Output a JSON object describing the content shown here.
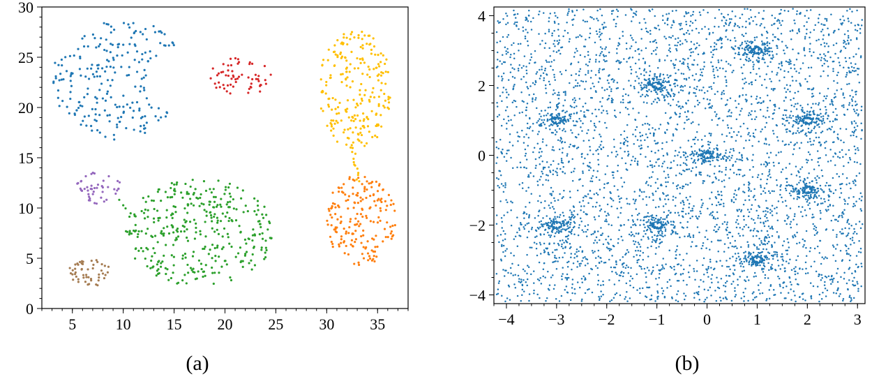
{
  "chart_data": [
    {
      "type": "scatter",
      "panel_label": "(a)",
      "xlim": [
        2,
        38
      ],
      "ylim": [
        0,
        30
      ],
      "xticks": [
        5,
        10,
        15,
        20,
        25,
        30,
        35
      ],
      "yticks": [
        0,
        5,
        10,
        15,
        20,
        25,
        30
      ],
      "grid": false,
      "series": [
        {
          "color": "#1f77b4",
          "region": "crescent",
          "center": [
            9.5,
            23
          ],
          "rx": 6.5,
          "ry": 6.2,
          "count": 230,
          "x_range": [
            3,
            16
          ]
        },
        {
          "color": "#d62728",
          "region": "ellipse",
          "center": [
            21.5,
            23.1
          ],
          "rx": 3.3,
          "ry": 1.9,
          "count": 60
        },
        {
          "color": "#ffbf00",
          "region": "ellipse",
          "center": [
            32.8,
            21.8
          ],
          "rx": 3.6,
          "ry": 6.0,
          "count": 230
        },
        {
          "color": "#ffbf00",
          "region": "bridge",
          "from": [
            32.5,
            16.5
          ],
          "to": [
            33.1,
            12.6
          ],
          "count": 14
        },
        {
          "color": "#ff7f0e",
          "region": "ellipse",
          "center": [
            33.3,
            8.8
          ],
          "rx": 3.5,
          "ry": 4.5,
          "count": 190
        },
        {
          "color": "#9467bd",
          "region": "ellipse",
          "center": [
            7.6,
            12.0
          ],
          "rx": 2.2,
          "ry": 1.6,
          "count": 45
        },
        {
          "color": "#2ca02c",
          "region": "ellipse",
          "center": [
            17.5,
            7.5
          ],
          "rx": 7.3,
          "ry": 5.4,
          "count": 360
        },
        {
          "color": "#2ca02c",
          "region": "bridge",
          "from": [
            9.5,
            10.8
          ],
          "to": [
            11.2,
            9.2
          ],
          "count": 5
        },
        {
          "color": "#a57c52",
          "region": "ellipse",
          "center": [
            6.7,
            3.6
          ],
          "rx": 2.1,
          "ry": 1.4,
          "count": 50
        }
      ]
    },
    {
      "type": "scatter",
      "panel_label": "(b)",
      "xlim": [
        -4.25,
        3.15
      ],
      "ylim": [
        -4.25,
        4.25
      ],
      "xticks": [
        -4,
        -3,
        -2,
        -1,
        0,
        1,
        2,
        3
      ],
      "yticks": [
        -4,
        -2,
        0,
        2,
        4
      ],
      "grid": false,
      "color": "#1f77b4",
      "background_points": 3600,
      "attractors": [
        [
          1,
          3
        ],
        [
          -1,
          2
        ],
        [
          -3,
          1
        ],
        [
          2,
          1
        ],
        [
          0,
          0
        ],
        [
          2,
          -1
        ],
        [
          -3,
          -2
        ],
        [
          -1,
          -2
        ],
        [
          1,
          -3
        ]
      ]
    }
  ]
}
